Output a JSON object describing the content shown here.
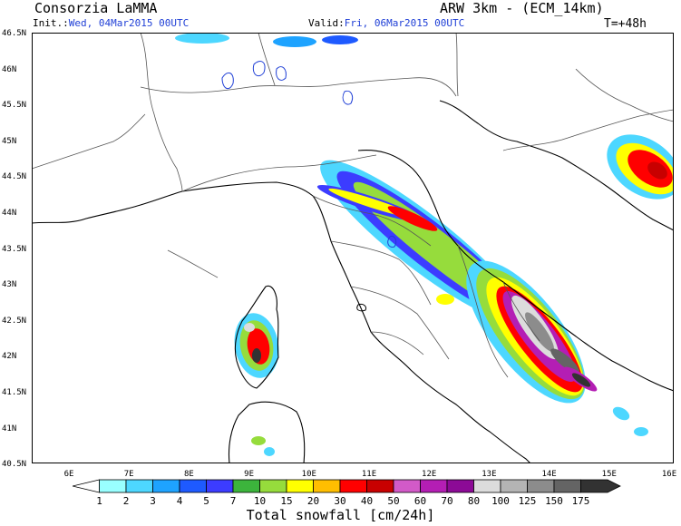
{
  "header": {
    "org": "Consorzia LaMMA",
    "model": "ARW 3km - (ECM_14km)",
    "init_label": "Init.:",
    "init_value": "Wed, 04Mar2015 00UTC",
    "valid_label": "Valid:",
    "valid_value": "Fri, 06Mar2015 00UTC",
    "lead": "T=+48h"
  },
  "axes": {
    "lat_labels": [
      "46.5N",
      "46N",
      "45.5N",
      "45N",
      "44.5N",
      "44N",
      "43.5N",
      "43N",
      "42.5N",
      "42N",
      "41.5N",
      "41N",
      "40.5N"
    ],
    "lon_labels": [
      "6E",
      "7E",
      "8E",
      "9E",
      "10E",
      "11E",
      "12E",
      "13E",
      "14E",
      "15E",
      "16E"
    ]
  },
  "colorbar": {
    "title": "Total snowfall [cm/24h]",
    "labels": [
      "1",
      "2",
      "3",
      "4",
      "5",
      "7",
      "10",
      "15",
      "20",
      "30",
      "40",
      "50",
      "60",
      "70",
      "80",
      "100",
      "125",
      "150",
      "175"
    ],
    "colors": [
      "#99ffff",
      "#4dd7ff",
      "#1ea3ff",
      "#1e5aff",
      "#3c3cff",
      "#3cb43c",
      "#96dc3c",
      "#ffff00",
      "#ffbe00",
      "#ff0000",
      "#c80000",
      "#d25ac8",
      "#b41eb4",
      "#8c0a96",
      "#dcdcdc",
      "#b4b4b4",
      "#8c8c8c",
      "#646464",
      "#323232"
    ]
  },
  "map": {
    "colors": {
      "border": "#555555",
      "coast": "#000000",
      "lake": "#1f3fd6"
    }
  }
}
